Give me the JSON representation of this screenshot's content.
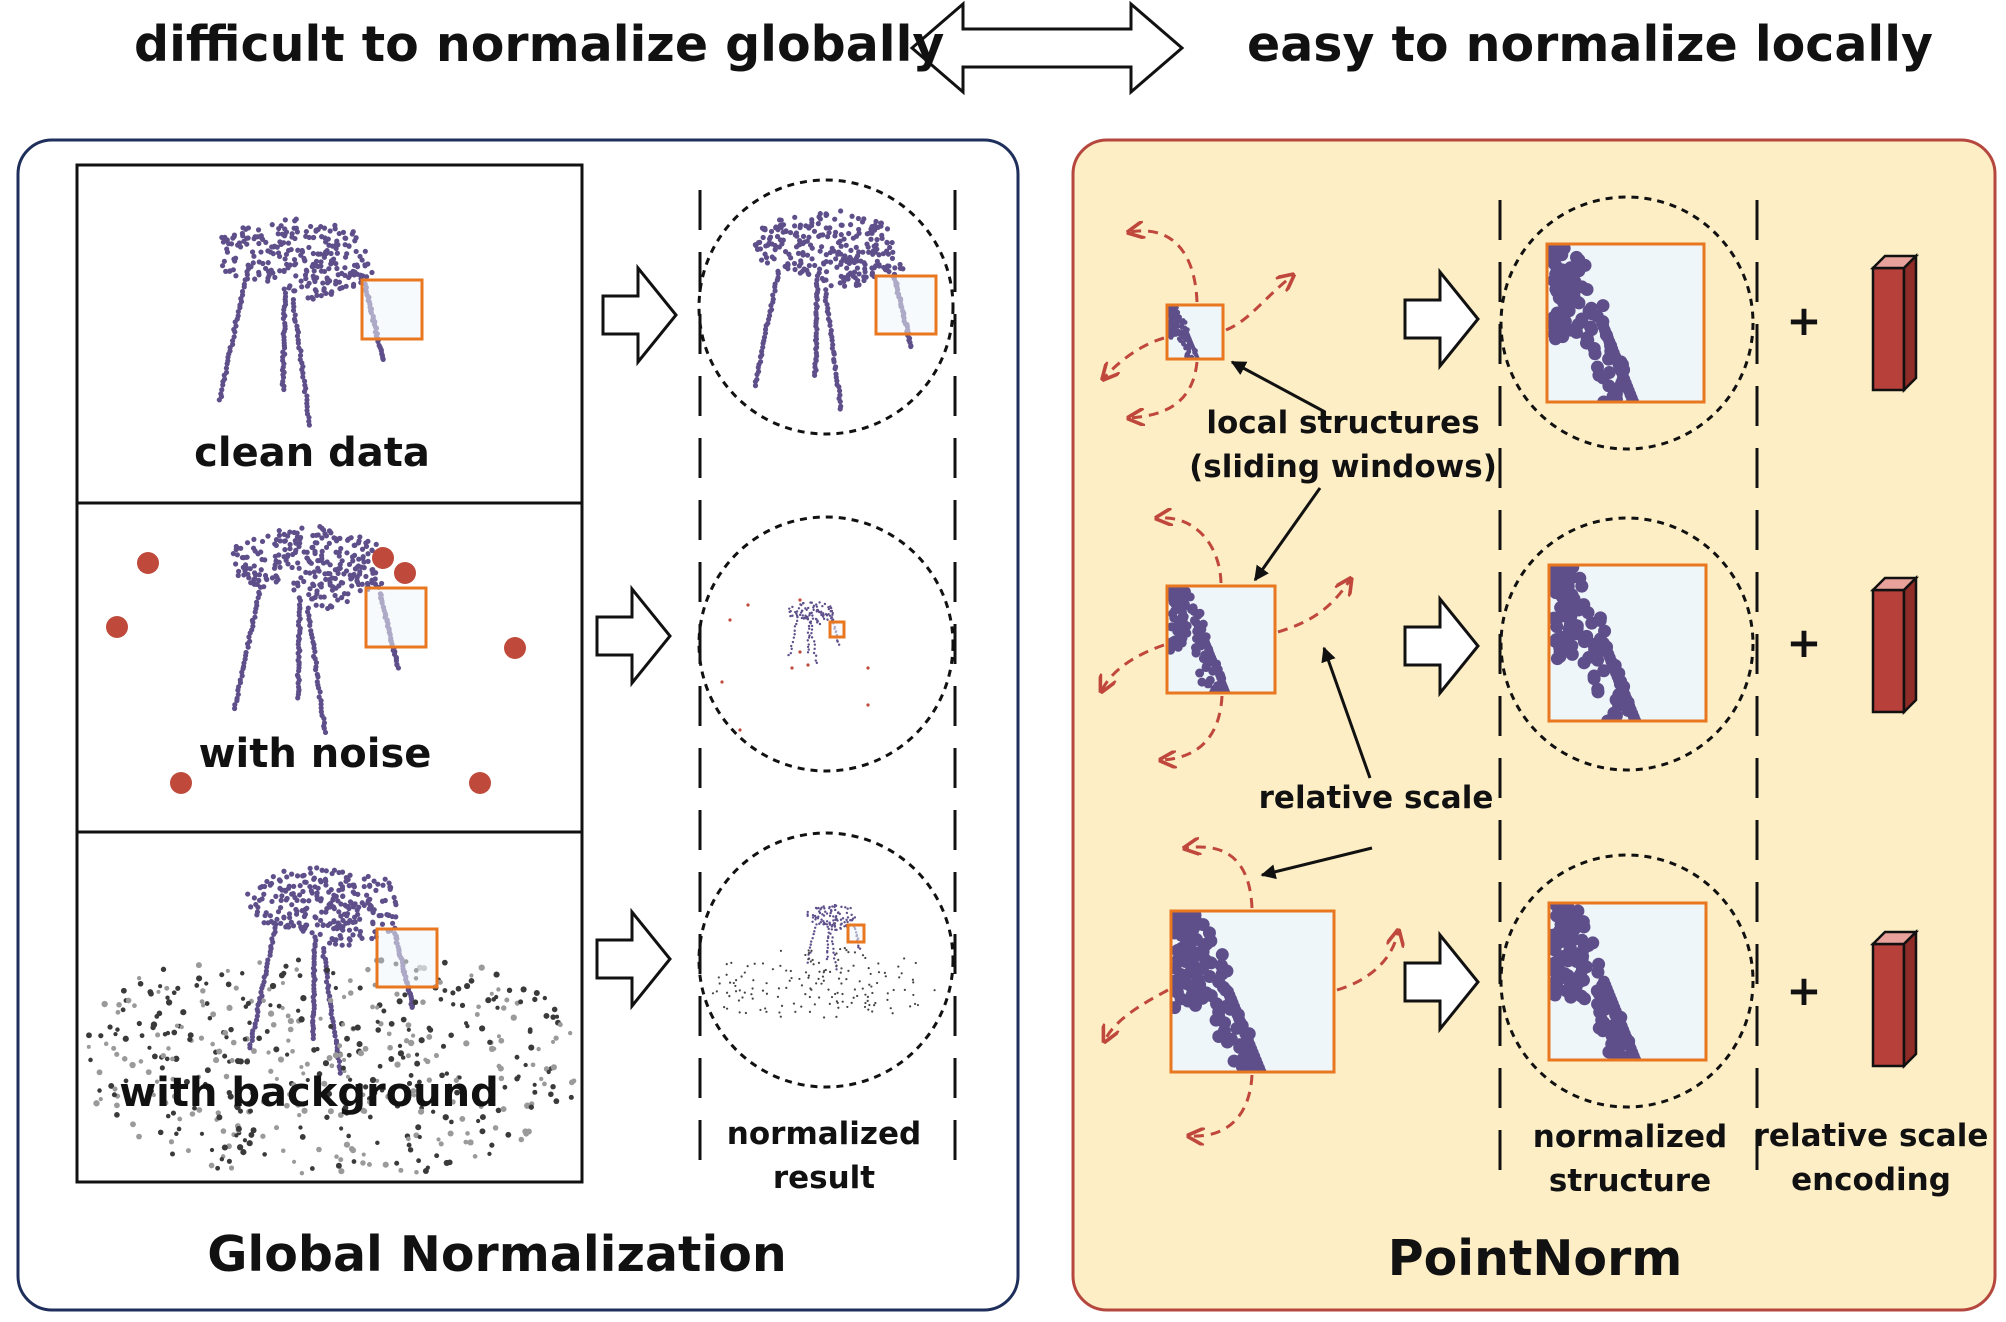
{
  "header": {
    "left_caption": "difficult to normalize globally",
    "right_caption": "easy to normalize locally"
  },
  "left_panel": {
    "title": "Global Normalization",
    "rows": [
      {
        "label": "clean data"
      },
      {
        "label": "with noise"
      },
      {
        "label": "with background"
      }
    ],
    "result_caption_line1": "normalized",
    "result_caption_line2": "result"
  },
  "right_panel": {
    "title": "PointNorm",
    "annotation_local_line1": "local structures",
    "annotation_local_line2": "(sliding windows)",
    "annotation_scale": "relative scale",
    "plus_sign": "+",
    "structure_caption_line1": "normalized",
    "structure_caption_line2": "structure",
    "encoding_caption_line1": "relative scale",
    "encoding_caption_line2": "encoding"
  },
  "colors": {
    "left_panel_border": "#1f2f5c",
    "right_panel_fill": "#fdeec5",
    "right_panel_border": "#b5473f",
    "window_frame": "#e8771f",
    "window_fill": "#eef6fa",
    "point_cloud": "#5e4f8a",
    "noise_points": "#bf4a3c",
    "scale_bar": "#b8403a",
    "dashed_arrow": "#c0473c"
  }
}
